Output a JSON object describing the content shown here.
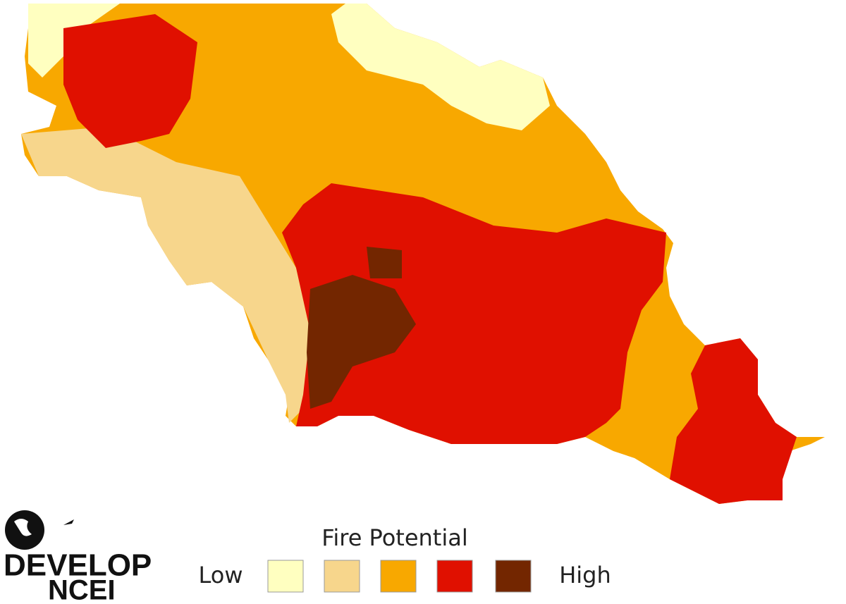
{
  "map": {
    "legend": {
      "title": "Fire Potential",
      "low_label": "Low",
      "high_label": "High",
      "colors": [
        "#ffffc0",
        "#f7d68c",
        "#f8a800",
        "#e01000",
        "#732600"
      ]
    }
  },
  "logo": {
    "line1": "DEVELOP",
    "line2": "NCEI"
  }
}
